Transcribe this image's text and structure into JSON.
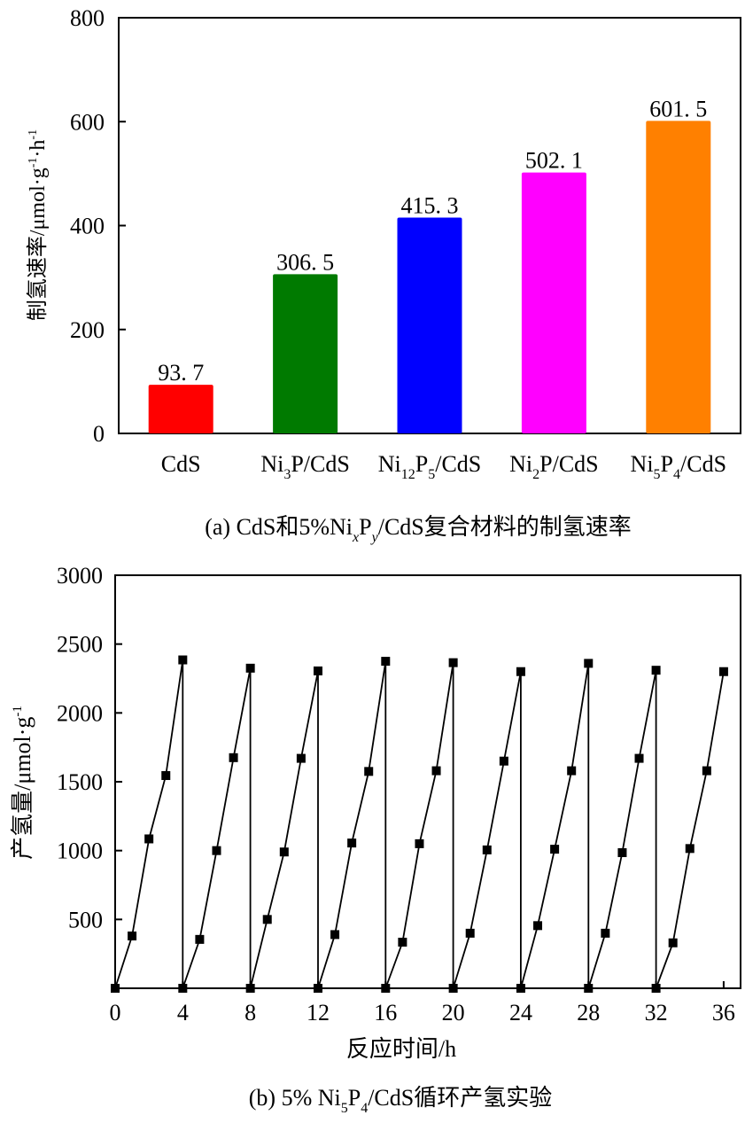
{
  "chart_data": [
    {
      "type": "bar",
      "caption": "(a) CdS和5%NixPy/CdS复合材料的制氢速率",
      "caption_parts": {
        "prefix": "(a) CdS和5%Ni",
        "sub_x": "x",
        "mid": "P",
        "sub_y": "y",
        "suffix": "/CdS复合材料的制氢速率"
      },
      "ylabel": "制氢速率/μmol·g⁻¹·h⁻¹",
      "ylabel_parts": {
        "main": "制氢速率/μmol·g",
        "sup1": "-1",
        "mid": "·h",
        "sup2": "-1"
      },
      "ylim": [
        0,
        800
      ],
      "yticks": [
        0,
        200,
        400,
        600,
        800
      ],
      "categories": [
        "CdS",
        "Ni3P/CdS",
        "Ni12P5/CdS",
        "Ni2P/CdS",
        "Ni5P4/CdS"
      ],
      "category_parts": [
        [
          {
            "t": "CdS",
            "s": "n"
          }
        ],
        [
          {
            "t": "Ni",
            "s": "n"
          },
          {
            "t": "3",
            "s": "sub"
          },
          {
            "t": "P/CdS",
            "s": "n"
          }
        ],
        [
          {
            "t": "Ni",
            "s": "n"
          },
          {
            "t": "12",
            "s": "sub"
          },
          {
            "t": "P",
            "s": "n"
          },
          {
            "t": "5",
            "s": "sub"
          },
          {
            "t": "/CdS",
            "s": "n"
          }
        ],
        [
          {
            "t": "Ni",
            "s": "n"
          },
          {
            "t": "2",
            "s": "sub"
          },
          {
            "t": "P/CdS",
            "s": "n"
          }
        ],
        [
          {
            "t": "Ni",
            "s": "n"
          },
          {
            "t": "5",
            "s": "sub"
          },
          {
            "t": "P",
            "s": "n"
          },
          {
            "t": "4",
            "s": "sub"
          },
          {
            "t": "/CdS",
            "s": "n"
          }
        ]
      ],
      "values": [
        93.7,
        306.5,
        415.3,
        502.1,
        601.5
      ],
      "value_labels": [
        "93. 7",
        "306. 5",
        "415. 3",
        "502. 1",
        "601. 5"
      ],
      "colors": [
        "#ff0000",
        "#007a00",
        "#0000ff",
        "#ff00ff",
        "#ff8000"
      ]
    },
    {
      "type": "line",
      "caption": "(b) 5% Ni5P4/CdS循环产氢实验",
      "caption_parts": [
        {
          "t": "(b) 5% Ni",
          "s": "n"
        },
        {
          "t": "5",
          "s": "sub"
        },
        {
          "t": "P",
          "s": "n"
        },
        {
          "t": "4",
          "s": "sub"
        },
        {
          "t": "/CdS循环产氢实验",
          "s": "n"
        }
      ],
      "xlabel": "反应时间/h",
      "ylabel": "产氢量/μmol·g⁻¹",
      "ylabel_parts": {
        "main": "产氢量/μmol·g",
        "sup": "-1"
      },
      "xlim": [
        0,
        37
      ],
      "ylim": [
        0,
        3000
      ],
      "xticks": [
        0,
        4,
        8,
        12,
        16,
        20,
        24,
        28,
        32,
        36
      ],
      "yticks": [
        500,
        1000,
        1500,
        2000,
        2500,
        3000
      ],
      "marker": "square",
      "series": [
        {
          "x": [
            0,
            1,
            2,
            3,
            4,
            4,
            5,
            6,
            7,
            8,
            8,
            9,
            10,
            11,
            12,
            12,
            13,
            14,
            15,
            16,
            16,
            17,
            18,
            19,
            20,
            20,
            21,
            22,
            23,
            24,
            24,
            25,
            26,
            27,
            28,
            28,
            29,
            30,
            31,
            32,
            32,
            33,
            34,
            35,
            36
          ],
          "y": [
            0,
            380,
            1085,
            1545,
            2385,
            0,
            355,
            1000,
            1675,
            2325,
            0,
            500,
            990,
            1670,
            2305,
            0,
            390,
            1055,
            1575,
            2375,
            0,
            335,
            1050,
            1580,
            2365,
            0,
            400,
            1005,
            1650,
            2300,
            0,
            455,
            1010,
            1580,
            2360,
            0,
            400,
            985,
            1670,
            2310,
            0,
            330,
            1015,
            1580,
            2300
          ]
        }
      ]
    }
  ]
}
